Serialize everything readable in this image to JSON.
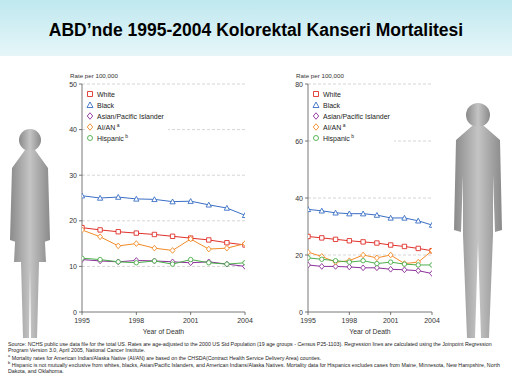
{
  "slide_title": "ABD’nde 1995-2004 Kolorektal Kanseri Mortalitesi",
  "chart_data": [
    {
      "type": "line",
      "y_label": "Rate per 100,000",
      "x_label": "Year of Death",
      "x": [
        1995,
        1996,
        1997,
        1998,
        1999,
        2000,
        2001,
        2002,
        2003,
        2004
      ],
      "xlim": [
        1995,
        2004
      ],
      "xticks": [
        1995,
        1998,
        2001,
        2004
      ],
      "ylim": [
        0,
        50
      ],
      "yticks": [
        0,
        10,
        20,
        30,
        40,
        50
      ],
      "grid": true,
      "legend": "upper left",
      "series": [
        {
          "name": "White",
          "color": "#e0302a",
          "marker": "square",
          "values": [
            18.5,
            18.0,
            17.6,
            17.3,
            17.0,
            16.6,
            16.2,
            15.8,
            15.2,
            14.7
          ]
        },
        {
          "name": "Black",
          "color": "#3a6fc4",
          "marker": "triangle",
          "values": [
            25.5,
            25.0,
            25.2,
            24.8,
            24.7,
            24.2,
            24.3,
            23.5,
            22.8,
            21.2
          ]
        },
        {
          "name": "Asian/Pacific Islander",
          "color": "#8b2f9a",
          "marker": "diamond",
          "values": [
            11.5,
            11.2,
            11.0,
            11.3,
            11.2,
            11.0,
            10.8,
            11.0,
            10.5,
            10.0
          ]
        },
        {
          "name": "AI/AN",
          "superscript": "a",
          "color": "#f28c28",
          "marker": "diamond",
          "values": [
            18.0,
            16.5,
            14.5,
            15.0,
            14.0,
            13.5,
            16.0,
            13.8,
            14.0,
            15.0
          ]
        },
        {
          "name": "Hispanic",
          "superscript": "b",
          "color": "#4cae4c",
          "marker": "circle",
          "values": [
            11.8,
            11.5,
            11.0,
            10.8,
            11.2,
            10.5,
            11.5,
            10.8,
            10.5,
            10.8
          ]
        }
      ]
    },
    {
      "type": "line",
      "y_label": "Rate per 100,000",
      "x_label": "Year of Death",
      "x": [
        1995,
        1996,
        1997,
        1998,
        1999,
        2000,
        2001,
        2002,
        2003,
        2004
      ],
      "xlim": [
        1995,
        2004
      ],
      "xticks": [
        1995,
        1998,
        2001,
        2004
      ],
      "ylim": [
        0,
        80
      ],
      "yticks": [
        0,
        20,
        40,
        60,
        80
      ],
      "grid": true,
      "legend": "upper left",
      "series": [
        {
          "name": "White",
          "color": "#e0302a",
          "marker": "square",
          "values": [
            26.5,
            26.0,
            25.5,
            25.0,
            24.6,
            24.2,
            23.5,
            23.0,
            22.3,
            21.5
          ]
        },
        {
          "name": "Black",
          "color": "#3a6fc4",
          "marker": "triangle",
          "values": [
            36.0,
            35.5,
            34.8,
            34.5,
            34.5,
            34.0,
            33.0,
            33.0,
            32.0,
            30.5
          ]
        },
        {
          "name": "Asian/Pacific Islander",
          "color": "#8b2f9a",
          "marker": "diamond",
          "values": [
            16.5,
            16.0,
            16.0,
            15.8,
            15.5,
            15.5,
            15.0,
            14.8,
            14.5,
            13.5
          ]
        },
        {
          "name": "AI/AN",
          "superscript": "a",
          "color": "#f28c28",
          "marker": "diamond",
          "values": [
            21.0,
            19.5,
            17.5,
            18.0,
            20.0,
            19.0,
            20.0,
            17.0,
            17.5,
            21.5
          ]
        },
        {
          "name": "Hispanic",
          "superscript": "b",
          "color": "#4cae4c",
          "marker": "circle",
          "values": [
            19.0,
            18.5,
            18.0,
            17.5,
            18.0,
            17.0,
            17.5,
            16.8,
            16.5,
            16.5
          ]
        }
      ]
    }
  ],
  "source_notes": [
    {
      "text": "Source: NCHS public use data file for the total US. Rates are age-adjusted to the 2000 US Std Population (19 age groups - Census P25-1103). Regression lines are calculated using the Joinpoint Regression Program Version 3.0, April 2005, National Cancer Institute."
    },
    {
      "mark": "a",
      "text": "Mortality rates for American Indian/Alaska Native (AI/AN) are based on the CHSDA(Contract Health Service Delivery Area) counties."
    },
    {
      "mark": "b",
      "text": "Hispanic is not mutually exclusive from whites, blacks, Asian/Pacific Islanders, and American Indians/Alaska Natives. Mortality data for Hispanics excludes cases from Maine, Minnesota, New Hampshire, North Dakota, and Oklahoma."
    }
  ]
}
